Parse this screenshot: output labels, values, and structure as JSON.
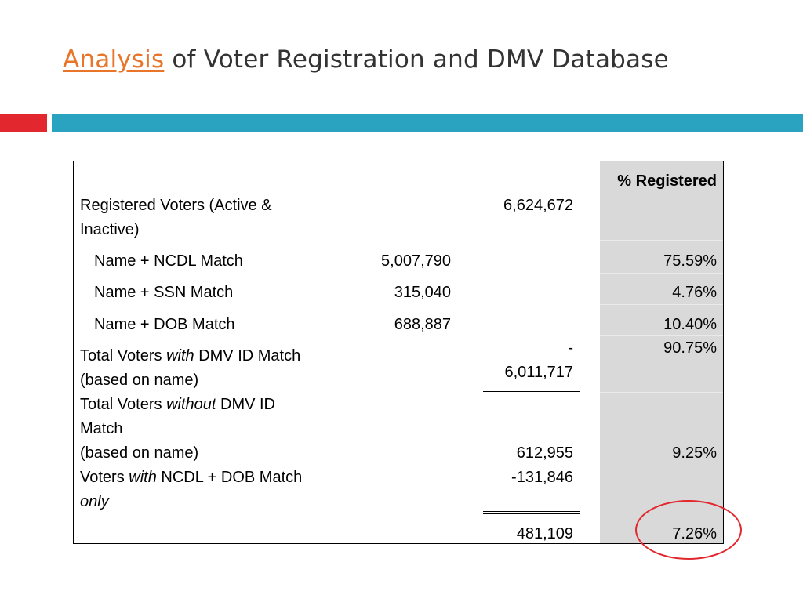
{
  "title": {
    "link_text": "Analysis",
    "rest_text": " of Voter Registration and DMV Database"
  },
  "colors": {
    "accent_red": "#e2272e",
    "accent_blue": "#2aa3c0",
    "link_orange": "#e8752a",
    "shade_gray": "#d9d9d9"
  },
  "table": {
    "header_pct": "% Registered",
    "rows": {
      "registered_label_1": "Registered Voters (Active &",
      "registered_label_2": "Inactive)",
      "registered_total": "6,624,672",
      "ncdl_label": "Name + NCDL Match",
      "ncdl_count": "5,007,790",
      "ncdl_pct": "75.59%",
      "ssn_label": "Name + SSN Match",
      "ssn_count": "315,040",
      "ssn_pct": "4.76%",
      "dob_label": "Name + DOB Match",
      "dob_count": "688,887",
      "dob_pct": "10.40%",
      "with_label_a": "Total Voters ",
      "with_label_em": "with",
      "with_label_b": " DMV ID Match",
      "with_label_2": "(based on name)",
      "with_minus": "-",
      "with_total": "6,011,717",
      "with_pct": "90.75%",
      "without_label_a": "Total Voters ",
      "without_label_em": "without",
      "without_label_b": " DMV ID",
      "without_label_2": "Match",
      "without_label_3": "(based on name)",
      "without_total": "612,955",
      "without_pct": "9.25%",
      "ncdl_dob_label_a": "Voters ",
      "ncdl_dob_label_em": "with",
      "ncdl_dob_label_b": " NCDL + DOB Match",
      "ncdl_dob_label_2": "only",
      "ncdl_dob_total": "-131,846",
      "final_total": "481,109",
      "final_pct": "7.26%"
    }
  }
}
